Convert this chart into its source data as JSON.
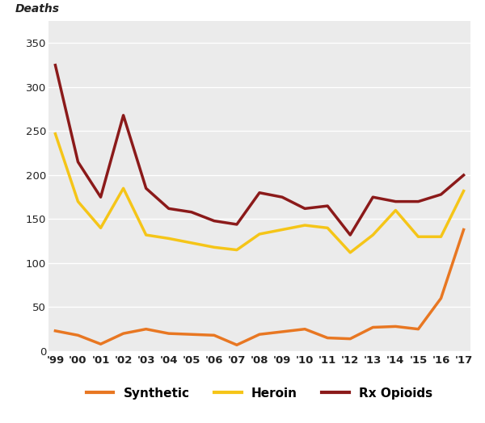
{
  "years": [
    1999,
    2000,
    2001,
    2002,
    2003,
    2004,
    2005,
    2006,
    2007,
    2008,
    2009,
    2010,
    2011,
    2012,
    2013,
    2014,
    2015,
    2016,
    2017
  ],
  "synthetic": [
    23,
    18,
    8,
    20,
    25,
    20,
    19,
    18,
    7,
    19,
    22,
    25,
    15,
    14,
    27,
    28,
    25,
    60,
    138
  ],
  "heroin": [
    247,
    170,
    140,
    185,
    132,
    128,
    123,
    118,
    115,
    133,
    138,
    143,
    140,
    112,
    132,
    160,
    130,
    130,
    182
  ],
  "rx_opioids": [
    325,
    215,
    175,
    268,
    185,
    162,
    158,
    148,
    144,
    180,
    175,
    162,
    165,
    132,
    175,
    170,
    170,
    178,
    200
  ],
  "synthetic_color": "#E87722",
  "heroin_color": "#F5C518",
  "rx_opioids_color": "#8B1A1A",
  "background_color": "#EBEBEB",
  "fig_background": "#FFFFFF",
  "ylim": [
    0,
    375
  ],
  "yticks": [
    0,
    50,
    100,
    150,
    200,
    250,
    300,
    350
  ],
  "ylabel": "Deaths",
  "xlabel_labels": [
    "'99",
    "'00",
    "'01",
    "'02",
    "'03",
    "'04",
    "'05",
    "'06",
    "'07",
    "'08",
    "'09",
    "'10",
    "'11",
    "'12",
    "'13",
    "'14",
    "'15",
    "'16",
    "'17"
  ],
  "legend_labels": [
    "Synthetic",
    "Heroin",
    "Rx Opioids"
  ],
  "line_width": 2.5
}
